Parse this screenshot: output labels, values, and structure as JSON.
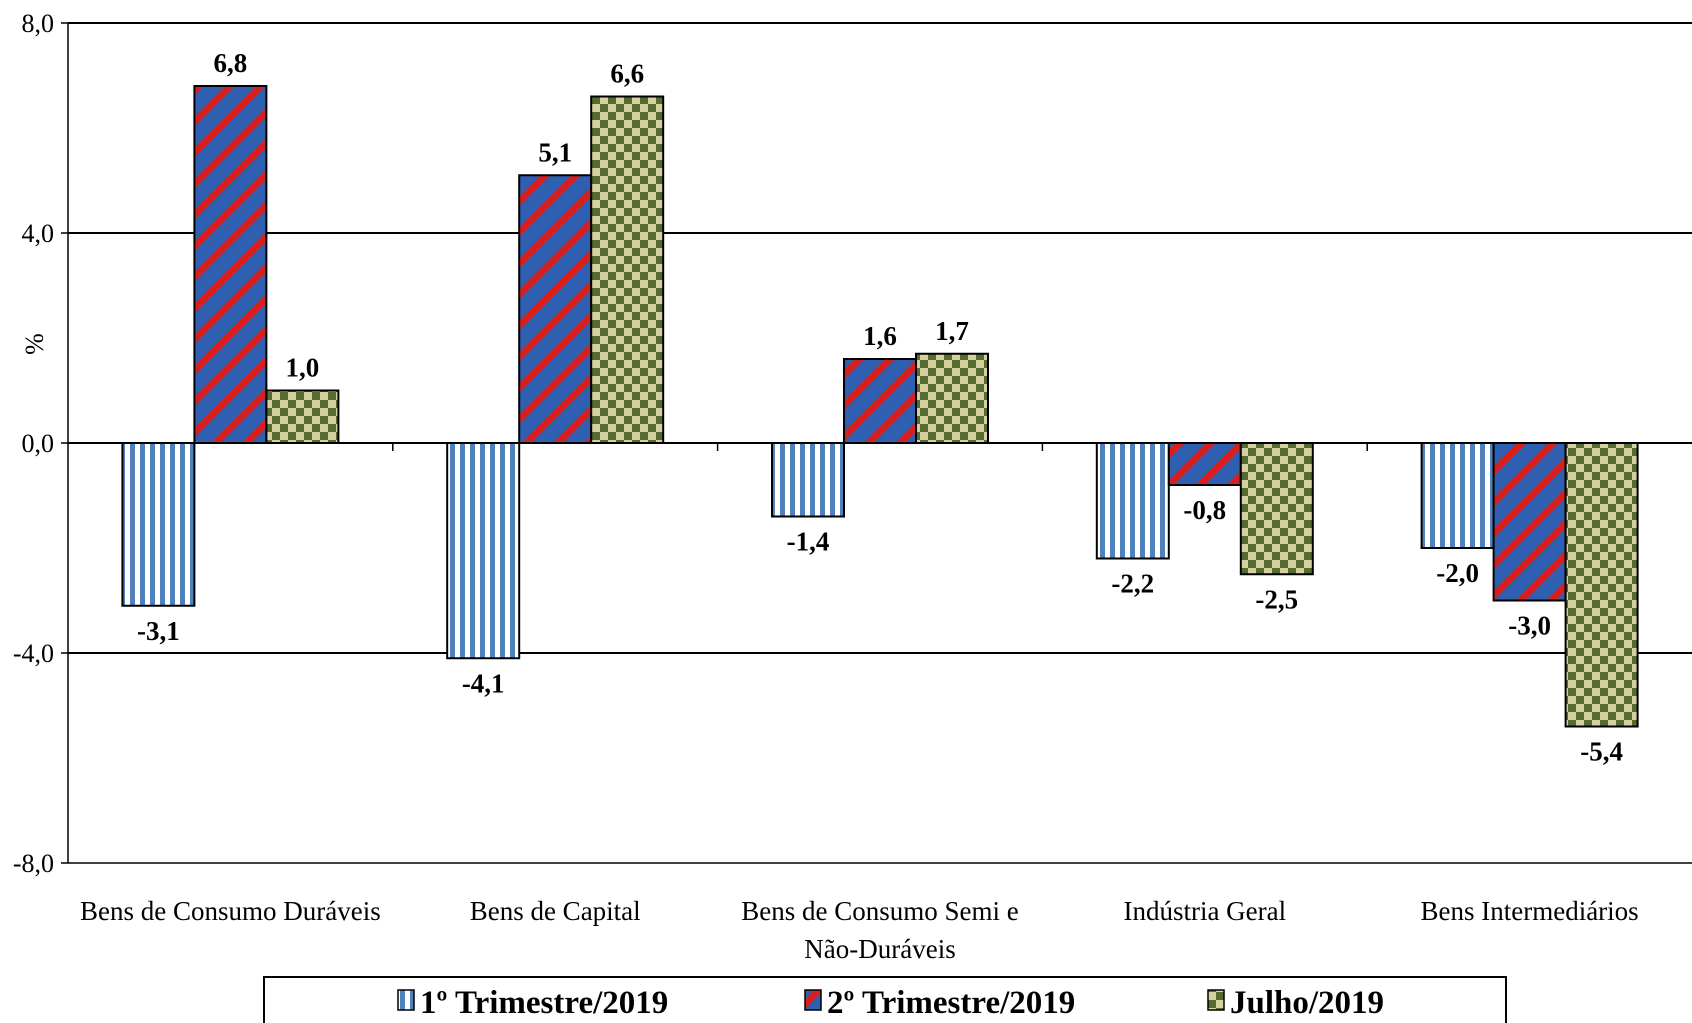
{
  "chart_data": {
    "type": "bar",
    "ylabel": "%",
    "ylim": [
      -8,
      8
    ],
    "yticks": [
      "8,0",
      "4,0",
      "0,0",
      "-4,0",
      "-8,0"
    ],
    "ytick_values": [
      8,
      4,
      0,
      -4,
      -8
    ],
    "categories": [
      [
        "Bens de Consumo Duráveis"
      ],
      [
        "Bens de Capital"
      ],
      [
        "Bens de Consumo Semi e",
        "Não-Duráveis"
      ],
      [
        "Indústria Geral"
      ],
      [
        "Bens Intermediários"
      ]
    ],
    "series": [
      {
        "name": "1º Trimestre/2019",
        "pattern": "vstripe",
        "color": "#4f81bd",
        "values": [
          -3.1,
          -4.1,
          -1.4,
          -2.2,
          -2.0
        ],
        "labels": [
          "-3,1",
          "-4,1",
          "-1,4",
          "-2,2",
          "-2,0"
        ]
      },
      {
        "name": "2º Trimestre/2019",
        "pattern": "diag",
        "color": "#2e5fb0",
        "color2": "#d62020",
        "values": [
          6.8,
          5.1,
          1.6,
          -0.8,
          -3.0
        ],
        "labels": [
          "6,8",
          "5,1",
          "1,6",
          "-0,8",
          "-3,0"
        ]
      },
      {
        "name": "Julho/2019",
        "pattern": "check",
        "color": "#d6cfa0",
        "color2": "#556b2f",
        "values": [
          1.0,
          6.6,
          1.7,
          -2.5,
          -5.4
        ],
        "labels": [
          "1,0",
          "6,6",
          "1,7",
          "-2,5",
          "-5,4"
        ]
      }
    ],
    "grid": true,
    "legend_position": "bottom"
  }
}
